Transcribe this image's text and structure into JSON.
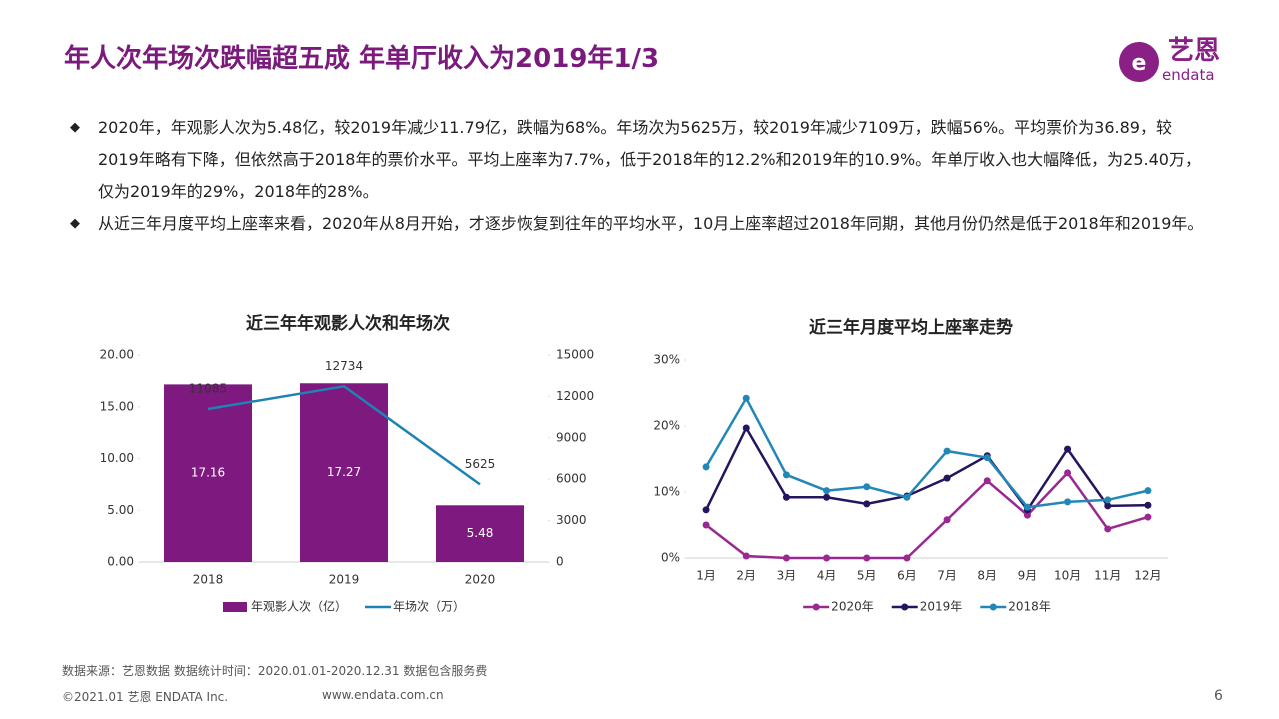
{
  "header": {
    "title": "年人次年场次跌幅超五成  年单厅收入为2019年1/3",
    "logo_cn": "艺恩",
    "logo_en": "endata"
  },
  "bullets": [
    "2020年，年观影人次为5.48亿，较2019年减少11.79亿，跌幅为68%。年场次为5625万，较2019年减少7109万，跌幅56%。平均票价为36.89，较2019年略有下降，但依然高于2018年的票价水平。平均上座率为7.7%，低于2018年的12.2%和2019年的10.9%。年单厅收入也大幅降低，为25.40万，仅为2019年的29%，2018年的28%。",
    "从近三年月度平均上座率来看，2020年从8月开始，才逐步恢复到往年的平均水平，10月上座率超过2018年同期，其他月份仍然是低于2018年和2019年。"
  ],
  "chart_data": [
    {
      "type": "bar",
      "title": "近三年年观影人次和年场次",
      "categories": [
        "2018",
        "2019",
        "2020"
      ],
      "series": [
        {
          "name": "年观影人次（亿）",
          "type": "bar",
          "color": "#7e1a7f",
          "values": [
            17.16,
            17.27,
            5.48
          ]
        },
        {
          "name": "年场次（万）",
          "type": "line",
          "axis": "y2",
          "color": "#1f82b4",
          "values": [
            11085,
            12734,
            5625
          ]
        }
      ],
      "ylim": [
        0,
        20
      ],
      "yticks": [
        {
          "value": 0,
          "label": "0.00"
        },
        {
          "value": 5,
          "label": "5.00"
        },
        {
          "value": 10,
          "label": "10.00"
        },
        {
          "value": 15,
          "label": "15.00"
        },
        {
          "value": 20,
          "label": "20.00"
        }
      ],
      "y2lim": [
        0,
        15000
      ],
      "y2ticks": [
        0,
        3000,
        6000,
        9000,
        12000,
        15000
      ],
      "data_labels": true,
      "markers": false,
      "grid": false,
      "legend": "bottom"
    },
    {
      "type": "line",
      "title": "近三年月度平均上座率走势",
      "categories": [
        "1月",
        "2月",
        "3月",
        "4月",
        "5月",
        "6月",
        "7月",
        "8月",
        "9月",
        "10月",
        "11月",
        "12月"
      ],
      "series": [
        {
          "name": "2020年",
          "color": "#9a2891",
          "values": [
            5.0,
            0.3,
            0,
            0,
            0,
            0,
            5.8,
            11.7,
            6.5,
            12.9,
            4.4,
            6.2
          ]
        },
        {
          "name": "2019年",
          "color": "#25145e",
          "values": [
            7.3,
            19.7,
            9.2,
            9.2,
            8.2,
            9.4,
            12.1,
            15.5,
            7.3,
            16.5,
            7.9,
            8.0
          ]
        },
        {
          "name": "2018年",
          "color": "#2287b6",
          "values": [
            13.8,
            24.2,
            12.6,
            10.2,
            10.8,
            9.2,
            16.2,
            15.2,
            7.7,
            8.5,
            8.8,
            10.2
          ]
        }
      ],
      "ylim": [
        0,
        30
      ],
      "yticks": [
        {
          "value": 0,
          "label": "0%"
        },
        {
          "value": 10,
          "label": "10%"
        },
        {
          "value": 20,
          "label": "20%"
        },
        {
          "value": 30,
          "label": "30%"
        }
      ],
      "data_labels": false,
      "markers": true,
      "grid": false,
      "legend": "bottom"
    }
  ],
  "footer": {
    "source": "数据来源：艺恩数据   数据统计时间：2020.01.01-2020.12.31 数据包含服务费",
    "copyright": "©2021.01 艺恩 ENDATA Inc.",
    "website": "www.endata.com.cn",
    "page": "6"
  }
}
